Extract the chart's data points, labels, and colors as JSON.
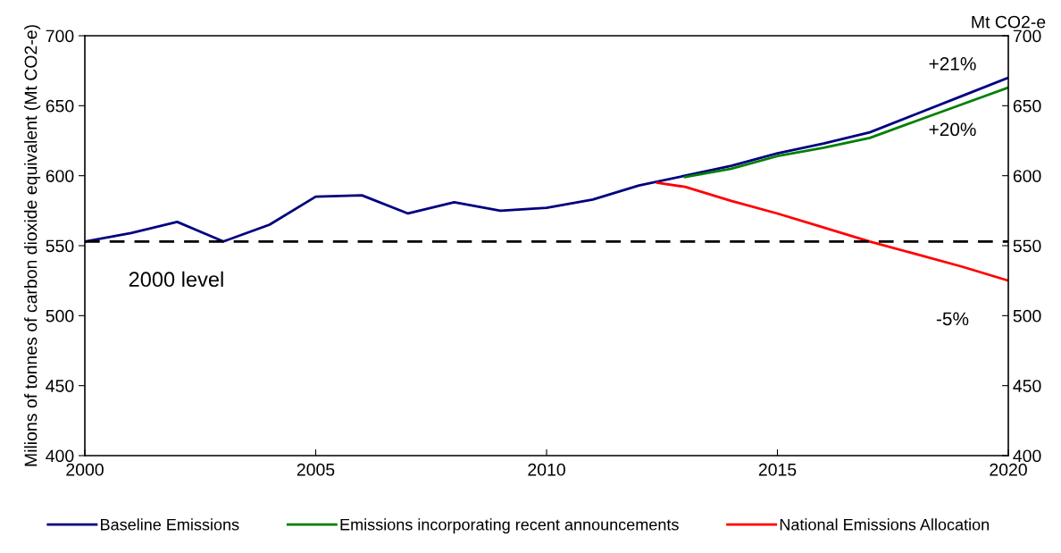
{
  "chart_data": {
    "type": "line",
    "ylabel": "Milions of tonnes of carbon dioxide equivalent (Mt CO2-e)",
    "y2label": "Mt CO2-e",
    "xlim": [
      2000,
      2020
    ],
    "xticks": [
      2000,
      2005,
      2010,
      2015,
      2020
    ],
    "ylim": [
      400,
      700
    ],
    "yticks": [
      400,
      450,
      500,
      550,
      600,
      650,
      700
    ],
    "y2lim": [
      400,
      700
    ],
    "y2ticks": [
      400,
      450,
      500,
      550,
      600,
      650,
      700
    ],
    "series": [
      {
        "name": "Baseline Emissions",
        "color": "#000080",
        "x": [
          2000,
          2001,
          2002,
          2003,
          2004,
          2005,
          2006,
          2007,
          2008,
          2009,
          2010,
          2011,
          2012,
          2013,
          2014,
          2015,
          2016,
          2017,
          2018,
          2019,
          2020
        ],
        "values": [
          553,
          559,
          567,
          553,
          565,
          585,
          586,
          573,
          581,
          575,
          577,
          583,
          593,
          600,
          607,
          616,
          623,
          631,
          644,
          657,
          670
        ]
      },
      {
        "name": "Emissions incorporating recent announcements",
        "color": "#008000",
        "x": [
          2013,
          2014,
          2015,
          2016,
          2017,
          2018,
          2019,
          2020
        ],
        "values": [
          599,
          605,
          614,
          620,
          627,
          639,
          651,
          663
        ]
      },
      {
        "name": "National Emissions Allocation",
        "color": "#ff0000",
        "x": [
          2012.4,
          2013,
          2014,
          2015,
          2016,
          2017,
          2018,
          2019,
          2020
        ],
        "values": [
          595,
          592,
          582,
          573,
          563,
          553,
          544,
          535,
          525
        ]
      }
    ],
    "ref_lines": [
      {
        "axis": "y",
        "value": 553,
        "label": "2000 level",
        "color": "#000000",
        "line_style": "dashed"
      }
    ],
    "annotations": [
      "+21%",
      "+20%",
      "-5%"
    ],
    "legend": "bottom",
    "grid": false,
    "marker": "none",
    "line_style": "solid"
  }
}
